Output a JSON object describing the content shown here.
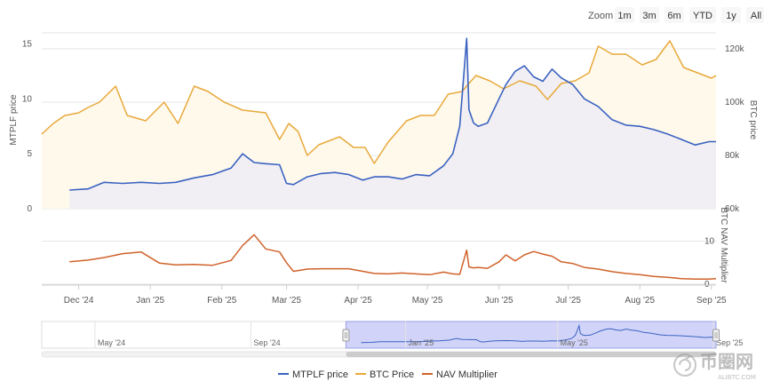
{
  "zoom": {
    "label": "Zoom",
    "buttons": [
      "1m",
      "3m",
      "6m",
      "YTD",
      "1y",
      "All"
    ]
  },
  "colors": {
    "mtplf": "#3a62c1",
    "btc": "#e8a93a",
    "nav": "#d0622a",
    "btc_fill": "#fff9ec",
    "mtplf_fill": "#f1eff3",
    "navigator_selection": "#c9cdf7"
  },
  "chart_data": {
    "type": "line",
    "axes": {
      "left_top": {
        "title": "MTPLF price",
        "ticks": [
          "0",
          "5",
          "10",
          "15"
        ],
        "range": [
          0,
          16
        ]
      },
      "right_top": {
        "title": "BTC price",
        "ticks": [
          "60k",
          "80k",
          "100k",
          "120k"
        ],
        "range": [
          60000,
          126000
        ]
      },
      "right_bottom": {
        "title": "BTC NAV Multiplier",
        "ticks": [
          "0",
          "10"
        ],
        "range": [
          0,
          13
        ]
      },
      "x": {
        "ticks": [
          "Dec '24",
          "Jan '25",
          "Feb '25",
          "Mar '25",
          "Apr '25",
          "May '25",
          "Jun '25",
          "Jul '25",
          "Aug '25",
          "Sep '25"
        ],
        "range": [
          "2024-11-15",
          "2025-09-03"
        ]
      }
    },
    "grid": true,
    "legend_position": "bottom-center",
    "series": [
      {
        "name": "MTPLF price",
        "x": [
          "2024-11-27",
          "2024-12-05",
          "2024-12-12",
          "2024-12-20",
          "2024-12-28",
          "2025-01-05",
          "2025-01-12",
          "2025-01-20",
          "2025-01-28",
          "2025-02-05",
          "2025-02-10",
          "2025-02-15",
          "2025-02-20",
          "2025-02-26",
          "2025-03-01",
          "2025-03-04",
          "2025-03-10",
          "2025-03-16",
          "2025-03-22",
          "2025-03-28",
          "2025-04-03",
          "2025-04-08",
          "2025-04-14",
          "2025-04-20",
          "2025-04-26",
          "2025-05-02",
          "2025-05-08",
          "2025-05-12",
          "2025-05-15",
          "2025-05-18",
          "2025-05-19",
          "2025-05-21",
          "2025-05-23",
          "2025-05-27",
          "2025-06-01",
          "2025-06-04",
          "2025-06-08",
          "2025-06-12",
          "2025-06-16",
          "2025-06-20",
          "2025-06-24",
          "2025-06-28",
          "2025-07-03",
          "2025-07-08",
          "2025-07-14",
          "2025-07-20",
          "2025-07-26",
          "2025-08-01",
          "2025-08-07",
          "2025-08-13",
          "2025-08-19",
          "2025-08-25",
          "2025-08-31",
          "2025-09-03"
        ],
        "values": [
          1.7,
          1.8,
          2.4,
          2.3,
          2.4,
          2.3,
          2.4,
          2.8,
          3.1,
          3.7,
          5.0,
          4.2,
          4.1,
          4.0,
          2.3,
          2.2,
          2.9,
          3.2,
          3.3,
          3.1,
          2.6,
          2.9,
          2.9,
          2.7,
          3.1,
          3.0,
          3.9,
          5.0,
          7.5,
          15.5,
          9.0,
          7.8,
          7.5,
          7.8,
          10.0,
          11.3,
          12.5,
          13.0,
          12.0,
          11.6,
          12.7,
          11.9,
          11.3,
          10.0,
          9.3,
          8.1,
          7.6,
          7.5,
          7.2,
          6.8,
          6.3,
          5.8,
          6.1,
          6.1
        ]
      },
      {
        "name": "BTC Price",
        "x": [
          "2024-11-15",
          "2024-11-20",
          "2024-11-25",
          "2024-12-01",
          "2024-12-05",
          "2024-12-10",
          "2024-12-17",
          "2024-12-22",
          "2024-12-30",
          "2025-01-07",
          "2025-01-13",
          "2025-01-20",
          "2025-01-26",
          "2025-02-02",
          "2025-02-10",
          "2025-02-20",
          "2025-02-26",
          "2025-03-02",
          "2025-03-06",
          "2025-03-10",
          "2025-03-15",
          "2025-03-24",
          "2025-03-30",
          "2025-04-04",
          "2025-04-08",
          "2025-04-14",
          "2025-04-22",
          "2025-04-28",
          "2025-05-04",
          "2025-05-10",
          "2025-05-16",
          "2025-05-22",
          "2025-05-28",
          "2025-06-03",
          "2025-06-10",
          "2025-06-17",
          "2025-06-22",
          "2025-06-28",
          "2025-07-04",
          "2025-07-10",
          "2025-07-14",
          "2025-07-20",
          "2025-07-26",
          "2025-08-02",
          "2025-08-08",
          "2025-08-14",
          "2025-08-20",
          "2025-08-26",
          "2025-09-01",
          "2025-09-03"
        ],
        "values": [
          88000,
          92000,
          95000,
          96000,
          98000,
          100000,
          106000,
          95000,
          93000,
          100000,
          92000,
          106000,
          104000,
          100000,
          97000,
          96000,
          86000,
          92000,
          89000,
          80000,
          84000,
          87000,
          83000,
          83000,
          77000,
          85000,
          93000,
          95000,
          95000,
          103000,
          104000,
          110000,
          108000,
          105000,
          108000,
          106000,
          101000,
          107000,
          108000,
          111000,
          121000,
          118000,
          118000,
          114000,
          116000,
          123000,
          113000,
          111000,
          109000,
          110000
        ]
      },
      {
        "name": "NAV Multiplier",
        "x": [
          "2024-11-27",
          "2024-12-05",
          "2024-12-12",
          "2024-12-20",
          "2024-12-28",
          "2025-01-05",
          "2025-01-12",
          "2025-01-20",
          "2025-01-28",
          "2025-02-05",
          "2025-02-10",
          "2025-02-15",
          "2025-02-20",
          "2025-02-26",
          "2025-03-01",
          "2025-03-04",
          "2025-03-10",
          "2025-03-16",
          "2025-03-22",
          "2025-03-28",
          "2025-04-03",
          "2025-04-08",
          "2025-04-14",
          "2025-04-20",
          "2025-04-26",
          "2025-05-02",
          "2025-05-08",
          "2025-05-12",
          "2025-05-15",
          "2025-05-18",
          "2025-05-19",
          "2025-05-21",
          "2025-05-23",
          "2025-05-27",
          "2025-06-01",
          "2025-06-04",
          "2025-06-08",
          "2025-06-12",
          "2025-06-16",
          "2025-06-20",
          "2025-06-24",
          "2025-06-28",
          "2025-07-03",
          "2025-07-08",
          "2025-07-14",
          "2025-07-20",
          "2025-07-26",
          "2025-08-01",
          "2025-08-07",
          "2025-08-13",
          "2025-08-19",
          "2025-08-25",
          "2025-08-31",
          "2025-09-03"
        ],
        "values": [
          5.2,
          5.6,
          6.2,
          7.1,
          7.5,
          4.9,
          4.5,
          4.6,
          4.4,
          5.5,
          9.0,
          11.5,
          8.2,
          7.5,
          5.0,
          3.0,
          3.5,
          3.6,
          3.6,
          3.6,
          3.0,
          2.5,
          2.4,
          2.6,
          2.4,
          2.2,
          2.8,
          2.4,
          2.3,
          7.9,
          4.0,
          3.8,
          3.9,
          3.7,
          5.2,
          6.8,
          5.4,
          6.8,
          7.6,
          7.0,
          6.5,
          5.2,
          4.8,
          3.9,
          3.5,
          2.9,
          2.5,
          2.2,
          1.8,
          1.6,
          1.3,
          1.2,
          1.2,
          1.3
        ]
      }
    ],
    "navigator": {
      "ticks": [
        "May '24",
        "Sep '24",
        "Jan '25",
        "May '25",
        "Sep '25"
      ],
      "range": [
        "2024-03-20",
        "2025-09-03"
      ],
      "selected": [
        "2024-11-15",
        "2025-09-03"
      ]
    }
  },
  "watermark": {
    "brand": "币圈网",
    "site": "ALIBTC.COM"
  }
}
